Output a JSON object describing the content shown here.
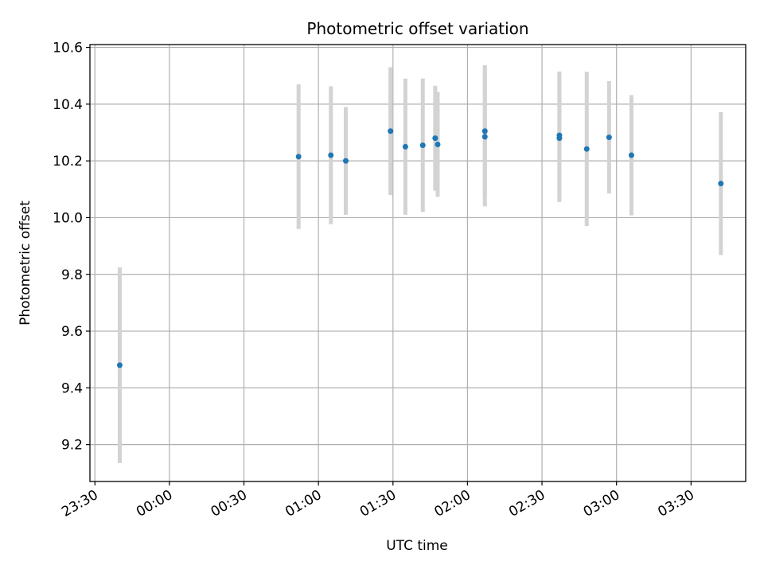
{
  "chart_data": {
    "type": "scatter",
    "title": "Photometric offset variation",
    "xlabel": "UTC time",
    "ylabel": "Photometric offset",
    "grid": true,
    "xlim": [
      "23:28",
      "03:52"
    ],
    "ylim": [
      9.07,
      10.61
    ],
    "x_ticks": [
      "23:30",
      "00:00",
      "00:30",
      "01:00",
      "01:30",
      "02:00",
      "02:30",
      "03:00",
      "03:30"
    ],
    "y_ticks": [
      9.2,
      9.4,
      9.6,
      9.8,
      10.0,
      10.2,
      10.4,
      10.6
    ],
    "y_tick_labels": [
      "9.2",
      "9.4",
      "9.6",
      "9.8",
      "10.0",
      "10.2",
      "10.4",
      "10.6"
    ],
    "colors": {
      "point": "#1f77b4",
      "errorbar": "#d3d3d3",
      "grid": "#b0b0b0"
    },
    "points": [
      {
        "x": "23:40",
        "y": 9.48,
        "yerr": 0.345
      },
      {
        "x": "00:52",
        "y": 10.215,
        "yerr": 0.255
      },
      {
        "x": "01:05",
        "y": 10.22,
        "yerr": 0.243
      },
      {
        "x": "01:11",
        "y": 10.2,
        "yerr": 0.19
      },
      {
        "x": "01:29",
        "y": 10.305,
        "yerr": 0.225
      },
      {
        "x": "01:35",
        "y": 10.25,
        "yerr": 0.24
      },
      {
        "x": "01:42",
        "y": 10.255,
        "yerr": 0.235
      },
      {
        "x": "01:47",
        "y": 10.28,
        "yerr": 0.185
      },
      {
        "x": "01:48",
        "y": 10.258,
        "yerr": 0.185
      },
      {
        "x": "02:07",
        "y": 10.285,
        "yerr": 0.245
      },
      {
        "x": "02:07",
        "y": 10.305,
        "yerr": 0.232
      },
      {
        "x": "02:37",
        "y": 10.29,
        "yerr": 0.225
      },
      {
        "x": "02:37",
        "y": 10.28,
        "yerr": 0.225
      },
      {
        "x": "02:48",
        "y": 10.242,
        "yerr": 0.272
      },
      {
        "x": "02:57",
        "y": 10.283,
        "yerr": 0.198
      },
      {
        "x": "03:06",
        "y": 10.22,
        "yerr": 0.212
      },
      {
        "x": "03:42",
        "y": 10.12,
        "yerr": 0.252
      }
    ]
  }
}
